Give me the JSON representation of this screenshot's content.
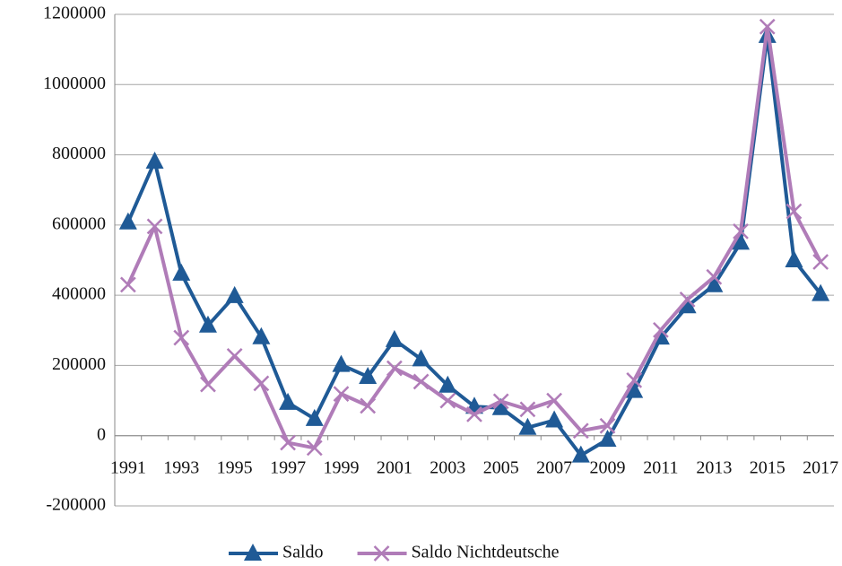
{
  "chart_data": {
    "type": "line",
    "categories": [
      "1991",
      null,
      "1993",
      null,
      "1995",
      null,
      "1997",
      null,
      "1999",
      null,
      "2001",
      null,
      "2003",
      null,
      "2005",
      null,
      "2007",
      null,
      "2009",
      null,
      "2011",
      null,
      "2013",
      null,
      "2015",
      null,
      "2017"
    ],
    "series": [
      {
        "name": "Saldo",
        "color": "#1f5a96",
        "marker": "triangle",
        "values": [
          608000,
          781000,
          462000,
          314000,
          398000,
          281000,
          94000,
          48000,
          202000,
          168000,
          273000,
          218000,
          143000,
          83000,
          79000,
          23000,
          44000,
          -56000,
          -11000,
          128000,
          280000,
          369000,
          429000,
          550000,
          1139000,
          500000,
          404000
        ]
      },
      {
        "name": "Saldo Nichtdeutsche",
        "color": "#b07cb8",
        "marker": "x",
        "values": [
          430000,
          596000,
          279000,
          146000,
          227000,
          149000,
          -20000,
          -35000,
          119000,
          85000,
          192000,
          154000,
          100000,
          61000,
          98000,
          75000,
          100000,
          14000,
          28000,
          158000,
          301000,
          388000,
          452000,
          582000,
          1165000,
          639000,
          495000
        ]
      }
    ],
    "ylim": [
      -200000,
      1200000
    ],
    "yticks": [
      -200000,
      0,
      200000,
      400000,
      600000,
      800000,
      1000000,
      1200000
    ],
    "grid": true,
    "legend": "bottom"
  }
}
